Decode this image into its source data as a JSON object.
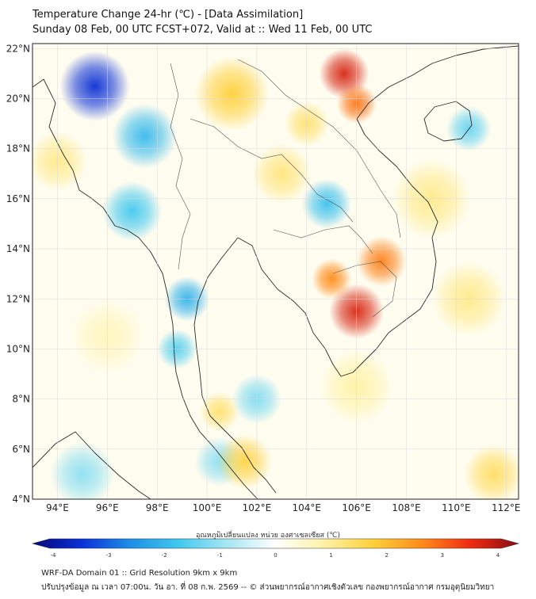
{
  "header": {
    "title_line1": "Temperature Change 24-hr (℃) - [Data Assimilation]",
    "title_line2": "Sunday 08 Feb, 00 UTC FCST+072, Valid at :: Wed 11 Feb, 00 UTC"
  },
  "map": {
    "lat_labels": [
      "22°N",
      "20°N",
      "18°N",
      "16°N",
      "14°N",
      "12°N",
      "10°N",
      "8°N",
      "6°N",
      "4°N"
    ],
    "lon_labels": [
      "94°E",
      "96°E",
      "98°E",
      "100°E",
      "102°E",
      "104°E",
      "106°E",
      "108°E",
      "110°E",
      "112°E"
    ],
    "grid_lats": [
      22,
      20,
      18,
      16,
      14,
      12,
      10,
      8,
      6,
      4
    ],
    "grid_lons": [
      94,
      96,
      98,
      100,
      102,
      104,
      106,
      108,
      110,
      112
    ],
    "lat_range": [
      4,
      22.2
    ],
    "lon_range": [
      93,
      112.5
    ]
  },
  "anomalies": [
    {
      "lon": 95.5,
      "lat": 20.5,
      "value": -3.2,
      "spread": 1.4
    },
    {
      "lon": 97.5,
      "lat": 18.5,
      "value": -1.8,
      "spread": 1.3
    },
    {
      "lon": 97.0,
      "lat": 15.5,
      "value": -1.6,
      "spread": 1.2
    },
    {
      "lon": 99.2,
      "lat": 12.0,
      "value": -1.9,
      "spread": 0.9
    },
    {
      "lon": 98.8,
      "lat": 10.0,
      "value": -1.4,
      "spread": 0.8
    },
    {
      "lon": 104.8,
      "lat": 15.8,
      "value": -1.7,
      "spread": 1.0
    },
    {
      "lon": 102.0,
      "lat": 8.0,
      "value": -1.1,
      "spread": 1.0
    },
    {
      "lon": 100.5,
      "lat": 5.5,
      "value": -1.0,
      "spread": 1.0
    },
    {
      "lon": 95.0,
      "lat": 5.0,
      "value": -1.0,
      "spread": 1.3
    },
    {
      "lon": 110.5,
      "lat": 18.8,
      "value": -1.3,
      "spread": 0.9
    },
    {
      "lon": 105.5,
      "lat": 21.0,
      "value": 3.4,
      "spread": 1.0
    },
    {
      "lon": 106.0,
      "lat": 19.8,
      "value": 2.6,
      "spread": 0.8
    },
    {
      "lon": 106.0,
      "lat": 11.5,
      "value": 3.4,
      "spread": 1.1
    },
    {
      "lon": 107.0,
      "lat": 13.5,
      "value": 2.5,
      "spread": 1.0
    },
    {
      "lon": 105.0,
      "lat": 12.8,
      "value": 2.4,
      "spread": 0.8
    },
    {
      "lon": 101.0,
      "lat": 20.2,
      "value": 1.6,
      "spread": 1.5
    },
    {
      "lon": 101.5,
      "lat": 5.5,
      "value": 1.5,
      "spread": 1.1
    },
    {
      "lon": 100.5,
      "lat": 7.5,
      "value": 1.2,
      "spread": 0.8
    },
    {
      "lon": 109.0,
      "lat": 16.0,
      "value": 1.0,
      "spread": 1.6
    },
    {
      "lon": 110.5,
      "lat": 12.0,
      "value": 1.0,
      "spread": 1.5
    },
    {
      "lon": 111.5,
      "lat": 5.0,
      "value": 1.3,
      "spread": 1.2
    },
    {
      "lon": 94.0,
      "lat": 17.5,
      "value": 1.0,
      "spread": 1.2
    },
    {
      "lon": 103.0,
      "lat": 17.0,
      "value": 1.1,
      "spread": 1.2
    },
    {
      "lon": 106.0,
      "lat": 8.5,
      "value": 0.8,
      "spread": 1.5
    },
    {
      "lon": 96.0,
      "lat": 10.5,
      "value": 0.6,
      "spread": 1.5
    },
    {
      "lon": 104.0,
      "lat": 19.0,
      "value": 1.2,
      "spread": 0.9
    }
  ],
  "colorbar": {
    "label": "อุณหภูมิเปลี่ยนแปลง หน่วย องศาเซลเซียส (℃)",
    "min": -4,
    "max": 4,
    "ticks": [
      "-4",
      "-3",
      "-2",
      "-1",
      "0",
      "1",
      "2",
      "3",
      "4"
    ],
    "stops": [
      "#08087a",
      "#0a2fd6",
      "#1e8ee6",
      "#41c8ee",
      "#a6e6f3",
      "#ffffff",
      "#fff2a6",
      "#ffd03a",
      "#ff8c1a",
      "#ef2d12",
      "#8a0c10"
    ]
  },
  "footer": {
    "line1": "WRF-DA Domain 01 :: Grid Resolution 9km x 9km",
    "line2": "ปรับปรุงข้อมูล ณ เวลา 07:00น. วัน อา. ที่ 08 ก.พ. 2569 -- © ส่วนพยากรณ์อากาศเชิงตัวเลข กองพยากรณ์อากาศ กรมอุตุนิยมวิทยา"
  }
}
